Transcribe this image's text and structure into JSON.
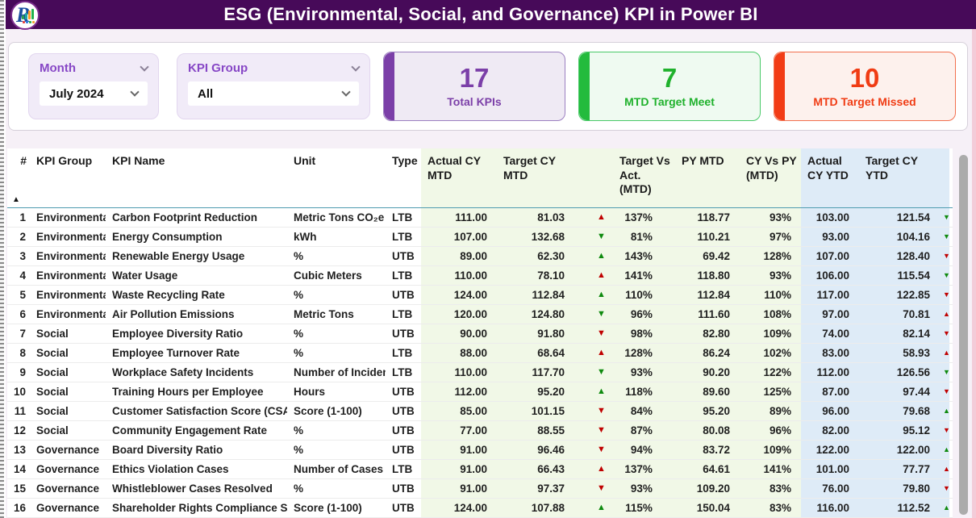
{
  "header": {
    "title": "ESG (Environmental, Social, and Governance) KPI in Power BI",
    "logo_letter": "R"
  },
  "filters": [
    {
      "label": "Month",
      "value": "July 2024"
    },
    {
      "label": "KPI Group",
      "value": "All"
    }
  ],
  "kpi_cards": [
    {
      "value": "17",
      "label": "Total KPIs",
      "theme": "purple",
      "accent": "#7B3FA8"
    },
    {
      "value": "7",
      "label": "MTD Target Meet",
      "theme": "green",
      "accent": "#1FB12C"
    },
    {
      "value": "10",
      "label": "MTD Target Missed",
      "theme": "red",
      "accent": "#F03C14"
    }
  ],
  "table": {
    "columns": [
      {
        "key": "num",
        "label": "#",
        "zone": "white",
        "sorted": true
      },
      {
        "key": "group",
        "label": "KPI Group",
        "zone": "white"
      },
      {
        "key": "name",
        "label": "KPI Name",
        "zone": "white"
      },
      {
        "key": "unit",
        "label": "Unit",
        "zone": "white"
      },
      {
        "key": "type",
        "label": "Type",
        "zone": "white"
      },
      {
        "key": "actual_mtd",
        "label": "Actual CY MTD",
        "zone": "green"
      },
      {
        "key": "target_mtd",
        "label": "Target CY MTD",
        "zone": "green"
      },
      {
        "key": "tva_mtd",
        "label": "Target Vs Act. (MTD)",
        "zone": "green"
      },
      {
        "key": "py_mtd",
        "label": "PY MTD",
        "zone": "green"
      },
      {
        "key": "cy_vs_py",
        "label": "CY Vs PY (MTD)",
        "zone": "green"
      },
      {
        "key": "actual_ytd",
        "label": "Actual CY YTD",
        "zone": "blue"
      },
      {
        "key": "target_ytd",
        "label": "Target CY YTD",
        "zone": "blue"
      },
      {
        "key": "ytd_sliver",
        "label": "",
        "zone": "blue"
      }
    ],
    "rows": [
      {
        "num": "1",
        "group": "Environmental",
        "name": "Carbon Footprint Reduction",
        "unit": "Metric Tons CO₂e",
        "type": "LTB",
        "actual_mtd": "111.00",
        "target_mtd": "81.03",
        "mtd_dir": "up",
        "mtd_color": "red",
        "tva_mtd": "137%",
        "py_mtd": "118.77",
        "cy_vs_py": "93%",
        "actual_ytd": "103.00",
        "target_ytd": "121.54",
        "ytd_dir": "down",
        "ytd_color": "green"
      },
      {
        "num": "2",
        "group": "Environmental",
        "name": "Energy Consumption",
        "unit": "kWh",
        "type": "LTB",
        "actual_mtd": "107.00",
        "target_mtd": "132.68",
        "mtd_dir": "down",
        "mtd_color": "green",
        "tva_mtd": "81%",
        "py_mtd": "110.21",
        "cy_vs_py": "97%",
        "actual_ytd": "93.00",
        "target_ytd": "104.16",
        "ytd_dir": "down",
        "ytd_color": "green"
      },
      {
        "num": "3",
        "group": "Environmental",
        "name": "Renewable Energy Usage",
        "unit": "%",
        "type": "UTB",
        "actual_mtd": "89.00",
        "target_mtd": "62.30",
        "mtd_dir": "up",
        "mtd_color": "green",
        "tva_mtd": "143%",
        "py_mtd": "69.42",
        "cy_vs_py": "128%",
        "actual_ytd": "107.00",
        "target_ytd": "128.40",
        "ytd_dir": "down",
        "ytd_color": "red"
      },
      {
        "num": "4",
        "group": "Environmental",
        "name": "Water Usage",
        "unit": "Cubic Meters",
        "type": "LTB",
        "actual_mtd": "110.00",
        "target_mtd": "78.10",
        "mtd_dir": "up",
        "mtd_color": "red",
        "tva_mtd": "141%",
        "py_mtd": "118.80",
        "cy_vs_py": "93%",
        "actual_ytd": "106.00",
        "target_ytd": "115.54",
        "ytd_dir": "down",
        "ytd_color": "green"
      },
      {
        "num": "5",
        "group": "Environmental",
        "name": "Waste Recycling Rate",
        "unit": "%",
        "type": "UTB",
        "actual_mtd": "124.00",
        "target_mtd": "112.84",
        "mtd_dir": "up",
        "mtd_color": "green",
        "tva_mtd": "110%",
        "py_mtd": "112.84",
        "cy_vs_py": "110%",
        "actual_ytd": "117.00",
        "target_ytd": "122.85",
        "ytd_dir": "down",
        "ytd_color": "red"
      },
      {
        "num": "6",
        "group": "Environmental",
        "name": "Air Pollution Emissions",
        "unit": "Metric Tons",
        "type": "LTB",
        "actual_mtd": "120.00",
        "target_mtd": "124.80",
        "mtd_dir": "down",
        "mtd_color": "green",
        "tva_mtd": "96%",
        "py_mtd": "111.60",
        "cy_vs_py": "108%",
        "actual_ytd": "97.00",
        "target_ytd": "70.81",
        "ytd_dir": "up",
        "ytd_color": "red"
      },
      {
        "num": "7",
        "group": "Social",
        "name": "Employee Diversity Ratio",
        "unit": "%",
        "type": "UTB",
        "actual_mtd": "90.00",
        "target_mtd": "91.80",
        "mtd_dir": "down",
        "mtd_color": "red",
        "tva_mtd": "98%",
        "py_mtd": "82.80",
        "cy_vs_py": "109%",
        "actual_ytd": "74.00",
        "target_ytd": "82.14",
        "ytd_dir": "down",
        "ytd_color": "red"
      },
      {
        "num": "8",
        "group": "Social",
        "name": "Employee Turnover Rate",
        "unit": "%",
        "type": "LTB",
        "actual_mtd": "88.00",
        "target_mtd": "68.64",
        "mtd_dir": "up",
        "mtd_color": "red",
        "tva_mtd": "128%",
        "py_mtd": "86.24",
        "cy_vs_py": "102%",
        "actual_ytd": "83.00",
        "target_ytd": "58.93",
        "ytd_dir": "up",
        "ytd_color": "red"
      },
      {
        "num": "9",
        "group": "Social",
        "name": "Workplace Safety Incidents",
        "unit": "Number of Incidents",
        "type": "LTB",
        "actual_mtd": "110.00",
        "target_mtd": "117.70",
        "mtd_dir": "down",
        "mtd_color": "green",
        "tva_mtd": "93%",
        "py_mtd": "90.20",
        "cy_vs_py": "122%",
        "actual_ytd": "112.00",
        "target_ytd": "126.56",
        "ytd_dir": "down",
        "ytd_color": "green"
      },
      {
        "num": "10",
        "group": "Social",
        "name": "Training Hours per Employee",
        "unit": "Hours",
        "type": "UTB",
        "actual_mtd": "112.00",
        "target_mtd": "95.20",
        "mtd_dir": "up",
        "mtd_color": "green",
        "tva_mtd": "118%",
        "py_mtd": "89.60",
        "cy_vs_py": "125%",
        "actual_ytd": "87.00",
        "target_ytd": "97.44",
        "ytd_dir": "down",
        "ytd_color": "red"
      },
      {
        "num": "11",
        "group": "Social",
        "name": "Customer Satisfaction Score (CSAT)",
        "unit": "Score (1-100)",
        "type": "UTB",
        "actual_mtd": "85.00",
        "target_mtd": "101.15",
        "mtd_dir": "down",
        "mtd_color": "red",
        "tva_mtd": "84%",
        "py_mtd": "95.20",
        "cy_vs_py": "89%",
        "actual_ytd": "96.00",
        "target_ytd": "79.68",
        "ytd_dir": "up",
        "ytd_color": "green"
      },
      {
        "num": "12",
        "group": "Social",
        "name": "Community Engagement Rate",
        "unit": "%",
        "type": "UTB",
        "actual_mtd": "77.00",
        "target_mtd": "88.55",
        "mtd_dir": "down",
        "mtd_color": "red",
        "tva_mtd": "87%",
        "py_mtd": "80.08",
        "cy_vs_py": "96%",
        "actual_ytd": "82.00",
        "target_ytd": "95.12",
        "ytd_dir": "down",
        "ytd_color": "red"
      },
      {
        "num": "13",
        "group": "Governance",
        "name": "Board Diversity Ratio",
        "unit": "%",
        "type": "UTB",
        "actual_mtd": "91.00",
        "target_mtd": "96.46",
        "mtd_dir": "down",
        "mtd_color": "red",
        "tva_mtd": "94%",
        "py_mtd": "83.72",
        "cy_vs_py": "109%",
        "actual_ytd": "122.00",
        "target_ytd": "122.00",
        "ytd_dir": "up",
        "ytd_color": "green"
      },
      {
        "num": "14",
        "group": "Governance",
        "name": "Ethics Violation Cases",
        "unit": "Number of Cases",
        "type": "LTB",
        "actual_mtd": "91.00",
        "target_mtd": "66.43",
        "mtd_dir": "up",
        "mtd_color": "red",
        "tva_mtd": "137%",
        "py_mtd": "64.61",
        "cy_vs_py": "141%",
        "actual_ytd": "101.00",
        "target_ytd": "77.77",
        "ytd_dir": "up",
        "ytd_color": "red"
      },
      {
        "num": "15",
        "group": "Governance",
        "name": "Whistleblower Cases Resolved",
        "unit": "%",
        "type": "UTB",
        "actual_mtd": "91.00",
        "target_mtd": "97.37",
        "mtd_dir": "down",
        "mtd_color": "red",
        "tva_mtd": "93%",
        "py_mtd": "109.20",
        "cy_vs_py": "83%",
        "actual_ytd": "76.00",
        "target_ytd": "79.80",
        "ytd_dir": "down",
        "ytd_color": "red"
      },
      {
        "num": "16",
        "group": "Governance",
        "name": "Shareholder Rights Compliance Score",
        "unit": "Score (1-100)",
        "type": "UTB",
        "actual_mtd": "124.00",
        "target_mtd": "107.88",
        "mtd_dir": "up",
        "mtd_color": "green",
        "tva_mtd": "115%",
        "py_mtd": "150.04",
        "cy_vs_py": "83%",
        "actual_ytd": "116.00",
        "target_ytd": "112.52",
        "ytd_dir": "up",
        "ytd_color": "green"
      }
    ]
  },
  "colors": {
    "header_bg": "#470A59",
    "accent_purple": "#7B3FA8",
    "accent_green": "#1FB12C",
    "accent_red": "#F03C14",
    "mtd_zone_bg": "#F1F8E7",
    "ytd_zone_bg": "#DEEBF7",
    "arrow_red": "#C00000",
    "arrow_green": "#0E8A0E"
  }
}
